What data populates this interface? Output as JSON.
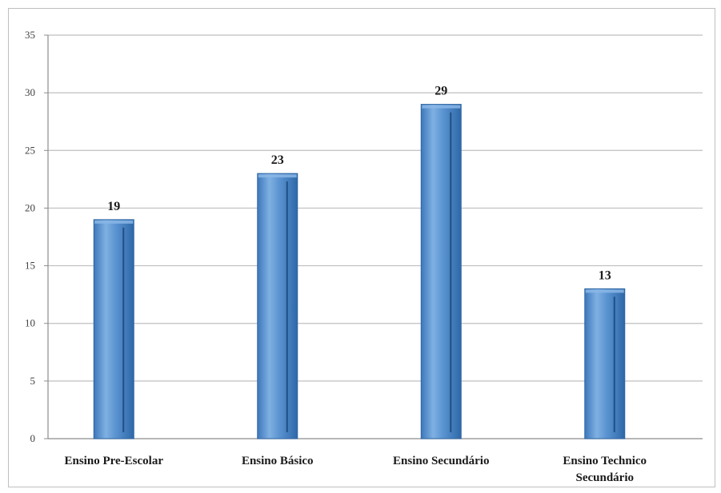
{
  "chart_data": {
    "type": "bar",
    "title": "",
    "xlabel": "",
    "ylabel": "",
    "categories": [
      [
        "Ensino Pre-Escolar"
      ],
      [
        "Ensino Básico"
      ],
      [
        "Ensino Secundário"
      ],
      [
        "Ensino Technico",
        "Secundário"
      ]
    ],
    "values": [
      19,
      23,
      29,
      13
    ],
    "data_labels": [
      "19",
      "23",
      "29",
      "13"
    ],
    "ylim": [
      0,
      35
    ],
    "yticks": [
      0,
      5,
      10,
      15,
      20,
      25,
      30,
      35
    ],
    "ytick_labels": [
      "0",
      "5",
      "10",
      "15",
      "20",
      "25",
      "30",
      "35"
    ],
    "grid": true,
    "legend": "none",
    "bar_color": "#4f89c9",
    "bar_highlight": "#8ab6e6",
    "bar_shadow": "#1f4f86",
    "grid_color": "#bfbfbf"
  }
}
